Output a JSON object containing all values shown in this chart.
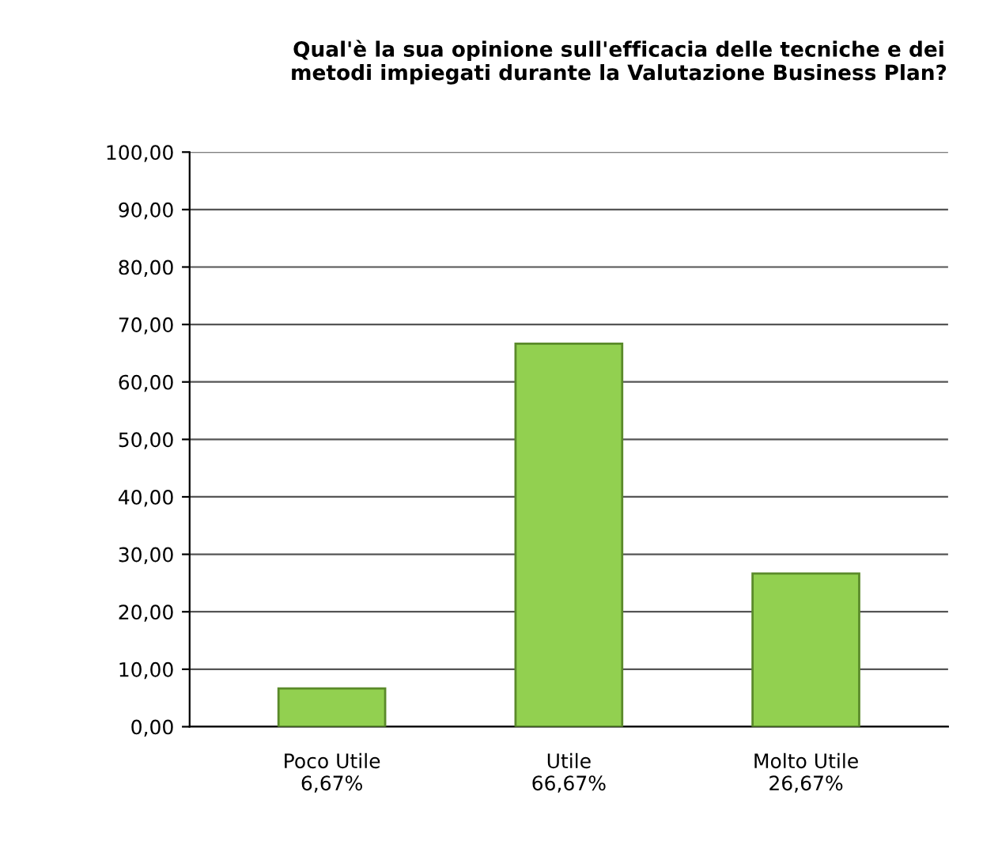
{
  "chart_data": {
    "type": "bar",
    "title": "Qual'è la sua opinione sull'efficacia delle tecniche e dei\nmetodi impiegati durante la Valutazione Business Plan?",
    "categories": [
      "Poco Utile",
      "Utile",
      "Molto Utile"
    ],
    "values": [
      6.67,
      66.67,
      26.67
    ],
    "value_labels": [
      "6,67%",
      "66,67%",
      "26,67%"
    ],
    "color": "#92d050",
    "ylim": [
      0,
      100
    ],
    "yticks": [
      {
        "value": 0,
        "label": "0,00"
      },
      {
        "value": 10,
        "label": "10,00"
      },
      {
        "value": 20,
        "label": "20,00"
      },
      {
        "value": 30,
        "label": "30,00"
      },
      {
        "value": 40,
        "label": "40,00"
      },
      {
        "value": 50,
        "label": "50,00"
      },
      {
        "value": 60,
        "label": "60,00"
      },
      {
        "value": 70,
        "label": "70,00"
      },
      {
        "value": 80,
        "label": "80,00"
      },
      {
        "value": 90,
        "label": "90,00"
      },
      {
        "value": 100,
        "label": "100,00"
      }
    ],
    "grid": "y",
    "legend": false
  }
}
